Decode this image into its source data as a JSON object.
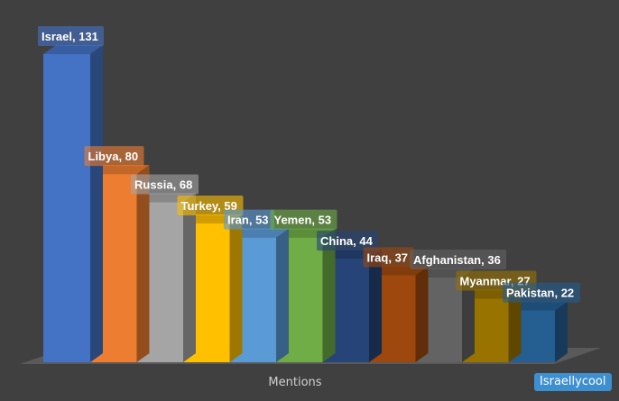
{
  "chart_data": {
    "type": "bar",
    "categories": [
      "Israel",
      "Libya",
      "Russia",
      "Turkey",
      "Iran",
      "Yemen",
      "China",
      "Iraq",
      "Afghanistan",
      "Myanmar",
      "Pakistan"
    ],
    "values": [
      131,
      80,
      68,
      59,
      53,
      53,
      44,
      37,
      36,
      27,
      22
    ],
    "data_labels": [
      "Israel, 131",
      "Libya, 80",
      "Russia, 68",
      "Turkey, 59",
      "Iran, 53",
      "Yemen, 53",
      "China, 44",
      "Iraq, 37",
      "Afghanistan, 36",
      "Myanmar, 27",
      "Pakistan, 22"
    ],
    "colors": [
      "#4472c4",
      "#ed7d31",
      "#a5a5a5",
      "#ffc000",
      "#5b9bd5",
      "#70ad47",
      "#264478",
      "#9e480e",
      "#636363",
      "#997300",
      "#255e91"
    ],
    "xlabel": "Mentions",
    "ylim": [
      0,
      140
    ],
    "grid": false,
    "legend": "none",
    "style": "3d-column"
  },
  "watermark": "Israellycool"
}
